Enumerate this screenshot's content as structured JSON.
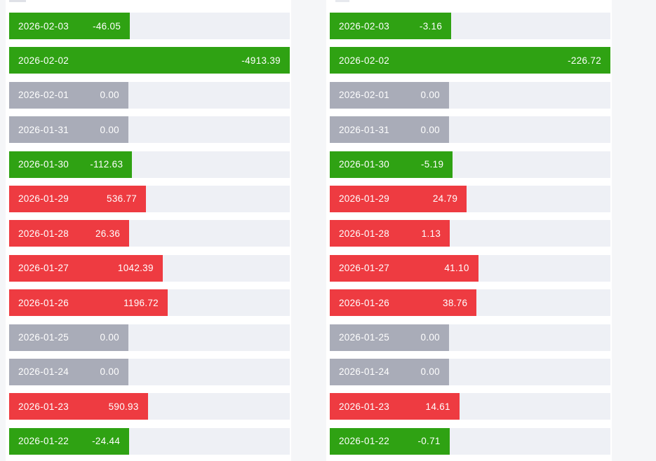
{
  "colors": {
    "positive_bar": "#ee3b41",
    "negative_bar": "#2fa213",
    "zero_bar": "#a9acb8",
    "track": "#eef0f5",
    "card_background": "#ffffff",
    "page_background": "#f5f6f8",
    "label_text": "#ffffff"
  },
  "chart_data": [
    {
      "type": "bar",
      "orientation": "horizontal",
      "title": "",
      "legend": "none",
      "axis_labels": "none",
      "categories": [
        "2026-02-03",
        "2026-02-02",
        "2026-02-01",
        "2026-01-31",
        "2026-01-30",
        "2026-01-29",
        "2026-01-28",
        "2026-01-27",
        "2026-01-26",
        "2026-01-25",
        "2026-01-24",
        "2026-01-23",
        "2026-01-22"
      ],
      "values": [
        -46.05,
        -4913.39,
        0,
        0,
        -112.63,
        536.77,
        26.36,
        1042.39,
        1196.72,
        0,
        0,
        590.93,
        -24.44
      ],
      "value_labels": [
        "-46.05",
        "-4913.39",
        "0.00",
        "0.00",
        "-112.63",
        "536.77",
        "26.36",
        "1042.39",
        "1196.72",
        "0.00",
        "0.00",
        "590.93",
        "-24.44"
      ],
      "color_rule": "red if value > 0, green if value < 0, gray if value == 0"
    },
    {
      "type": "bar",
      "orientation": "horizontal",
      "title": "",
      "legend": "none",
      "axis_labels": "none",
      "categories": [
        "2026-02-03",
        "2026-02-02",
        "2026-02-01",
        "2026-01-31",
        "2026-01-30",
        "2026-01-29",
        "2026-01-28",
        "2026-01-27",
        "2026-01-26",
        "2026-01-25",
        "2026-01-24",
        "2026-01-23",
        "2026-01-22"
      ],
      "values": [
        -3.16,
        -226.72,
        0,
        0,
        -5.19,
        24.79,
        1.13,
        41.1,
        38.76,
        0,
        0,
        14.61,
        -0.71
      ],
      "value_labels": [
        "-3.16",
        "-226.72",
        "0.00",
        "0.00",
        "-5.19",
        "24.79",
        "1.13",
        "41.10",
        "38.76",
        "0.00",
        "0.00",
        "14.61",
        "-0.71"
      ],
      "color_rule": "red if value > 0, green if value < 0, gray if value == 0"
    }
  ]
}
